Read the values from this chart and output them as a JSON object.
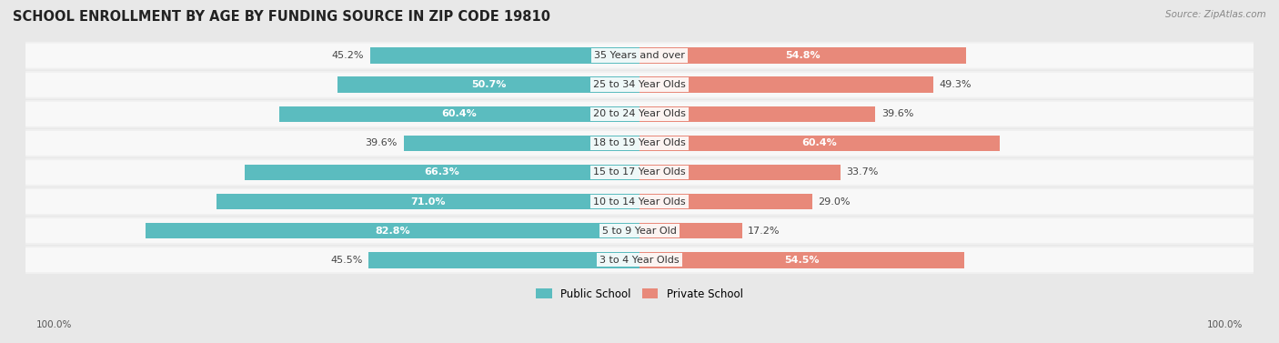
{
  "title": "SCHOOL ENROLLMENT BY AGE BY FUNDING SOURCE IN ZIP CODE 19810",
  "source": "Source: ZipAtlas.com",
  "categories": [
    "3 to 4 Year Olds",
    "5 to 9 Year Old",
    "10 to 14 Year Olds",
    "15 to 17 Year Olds",
    "18 to 19 Year Olds",
    "20 to 24 Year Olds",
    "25 to 34 Year Olds",
    "35 Years and over"
  ],
  "public_values": [
    45.5,
    82.8,
    71.0,
    66.3,
    39.6,
    60.4,
    50.7,
    45.2
  ],
  "private_values": [
    54.5,
    17.2,
    29.0,
    33.7,
    60.4,
    39.6,
    49.3,
    54.8
  ],
  "public_color": "#5bbcbf",
  "private_color": "#e8897a",
  "public_label": "Public School",
  "private_label": "Private School",
  "bg_color": "#e8e8e8",
  "row_light_color": "#f0f0f0",
  "row_inner_color": "#f8f8f8",
  "title_fontsize": 10.5,
  "label_fontsize": 8.0,
  "value_fontsize": 8.0,
  "axis_label_fontsize": 7.5,
  "footer_value": "100.0%"
}
